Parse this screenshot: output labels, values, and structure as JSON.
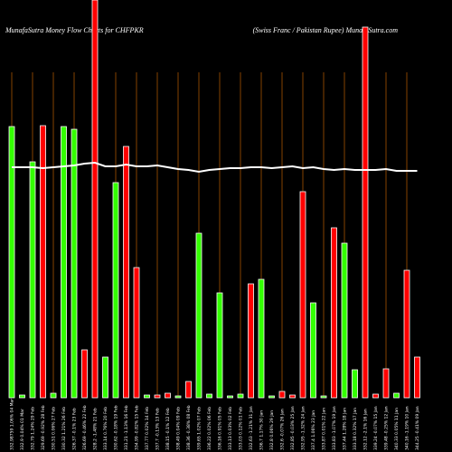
{
  "chart_data": {
    "type": "bar",
    "title": "MunafaSutra  Money Flow  Charts for CHFPKR",
    "subtitle": "(Swiss Franc / Pakistan  Rupee) MunafaSutra.com",
    "categories": [
      "332.98759 1.06% 04 Mar",
      "332.9 0.04% 01 Mar",
      "332.79 1.24% 29 Feb",
      "329.69 -0.92% 28 Feb",
      "330.51 0.06% 27 Feb",
      "330.32 1.21% 26 Feb",
      "326.37 -0.1% 23 Feb",
      "326.69 -0.46% 22 Feb",
      "328.2 -1.48% 21 Feb",
      "333.14 0.76% 20 Feb",
      "330.62 -0.18% 19 Feb",
      "331.21 -1.13% 16 Feb",
      "334.99 -0.82% 15 Feb",
      "337.77 0.02% 14 Feb",
      "337.7 -0.13% 13 Feb",
      "338.15 -0.1% 12 Feb",
      "338.49 0.04% 09 Feb",
      "338.36 -0.38% 08 Feb",
      "339.65 1.02% 07 Feb",
      "336.22 0.02% 06 Feb",
      "336.16 0.91% 05 Feb",
      "333.13 0.03% 02 Feb",
      "333.03 0.12% 01 Feb",
      "332.63 -1.21% 31 Jan",
      "336.7 1.17% 30 Jan",
      "332.8 0.06% 29 Jan",
      "332.6 -0.07% 26 Jan",
      "332.85 -0.03% 25 Jan",
      "332.95 -1.32% 24 Jan",
      "337.4 1.06% 23 Jan",
      "333.87 0.01% 22 Jan",
      "333.83 -1.07% 19 Jan",
      "337.44 1.28% 18 Jan",
      "333.18 0.32% 17 Jan",
      "332.12 -2.1% 16 Jan",
      "339.24 -0.07% 15 Jan",
      "339.48 -0.25% 12 Jan",
      "340.33 0.05% 11 Jan",
      "340.16 -1.19% 10 Jan",
      "344.25 -0.41% 09 Jan"
    ],
    "values": [
      300,
      3,
      261,
      301,
      5,
      300,
      297,
      53,
      440,
      45,
      238,
      278,
      144,
      3,
      3,
      5,
      2,
      18,
      182,
      4,
      116,
      2,
      4,
      126,
      131,
      2,
      7,
      3,
      228,
      105,
      2,
      188,
      171,
      31,
      410,
      4,
      32,
      5,
      141,
      45
    ],
    "colors": [
      "#33ff00",
      "#33ff00",
      "#33ff00",
      "#ff0000",
      "#33ff00",
      "#33ff00",
      "#33ff00",
      "#ff0000",
      "#ff0000",
      "#33ff00",
      "#33ff00",
      "#ff0000",
      "#ff0000",
      "#33ff00",
      "#ff0000",
      "#ff0000",
      "#33ff00",
      "#ff0000",
      "#33ff00",
      "#33ff00",
      "#33ff00",
      "#33ff00",
      "#33ff00",
      "#ff0000",
      "#33ff00",
      "#33ff00",
      "#ff0000",
      "#ff0000",
      "#ff0000",
      "#33ff00",
      "#33ff00",
      "#ff0000",
      "#33ff00",
      "#33ff00",
      "#ff0000",
      "#ff0000",
      "#ff0000",
      "#33ff00",
      "#ff0000",
      "#ff0000"
    ],
    "line": {
      "color": "#ffffff",
      "values": [
        255,
        255,
        255,
        254,
        255,
        256,
        257,
        259,
        260,
        256,
        256,
        258,
        256,
        256,
        257,
        255,
        253,
        252,
        250,
        252,
        253,
        254,
        254,
        255,
        255,
        254,
        255,
        256,
        254,
        255,
        253,
        252,
        253,
        252,
        252,
        252,
        253,
        251,
        251,
        251
      ]
    },
    "ylim": [
      0,
      440
    ]
  }
}
